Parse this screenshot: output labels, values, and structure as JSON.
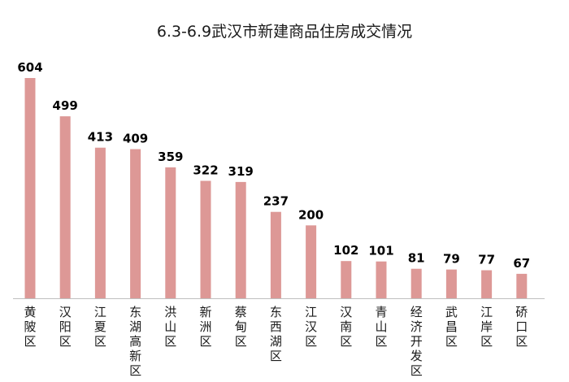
{
  "chart_data": {
    "type": "bar",
    "title": "6.3-6.9武汉市新建商品住房成交情况",
    "categories": [
      "黄陂区",
      "汉阳区",
      "江夏区",
      "东湖高新区",
      "洪山区",
      "新洲区",
      "蔡甸区",
      "东西湖区",
      "江汉区",
      "汉南区",
      "青山区",
      "经济开发区",
      "武昌区",
      "江岸区",
      "硚口区"
    ],
    "values": [
      604,
      499,
      413,
      409,
      359,
      322,
      319,
      237,
      200,
      102,
      101,
      81,
      79,
      77,
      67
    ],
    "xlabel": "",
    "ylabel": "",
    "ylim": [
      0,
      604
    ],
    "grid": false,
    "bar_color": "#dd9896",
    "axis_color": "#bfbfbf"
  }
}
